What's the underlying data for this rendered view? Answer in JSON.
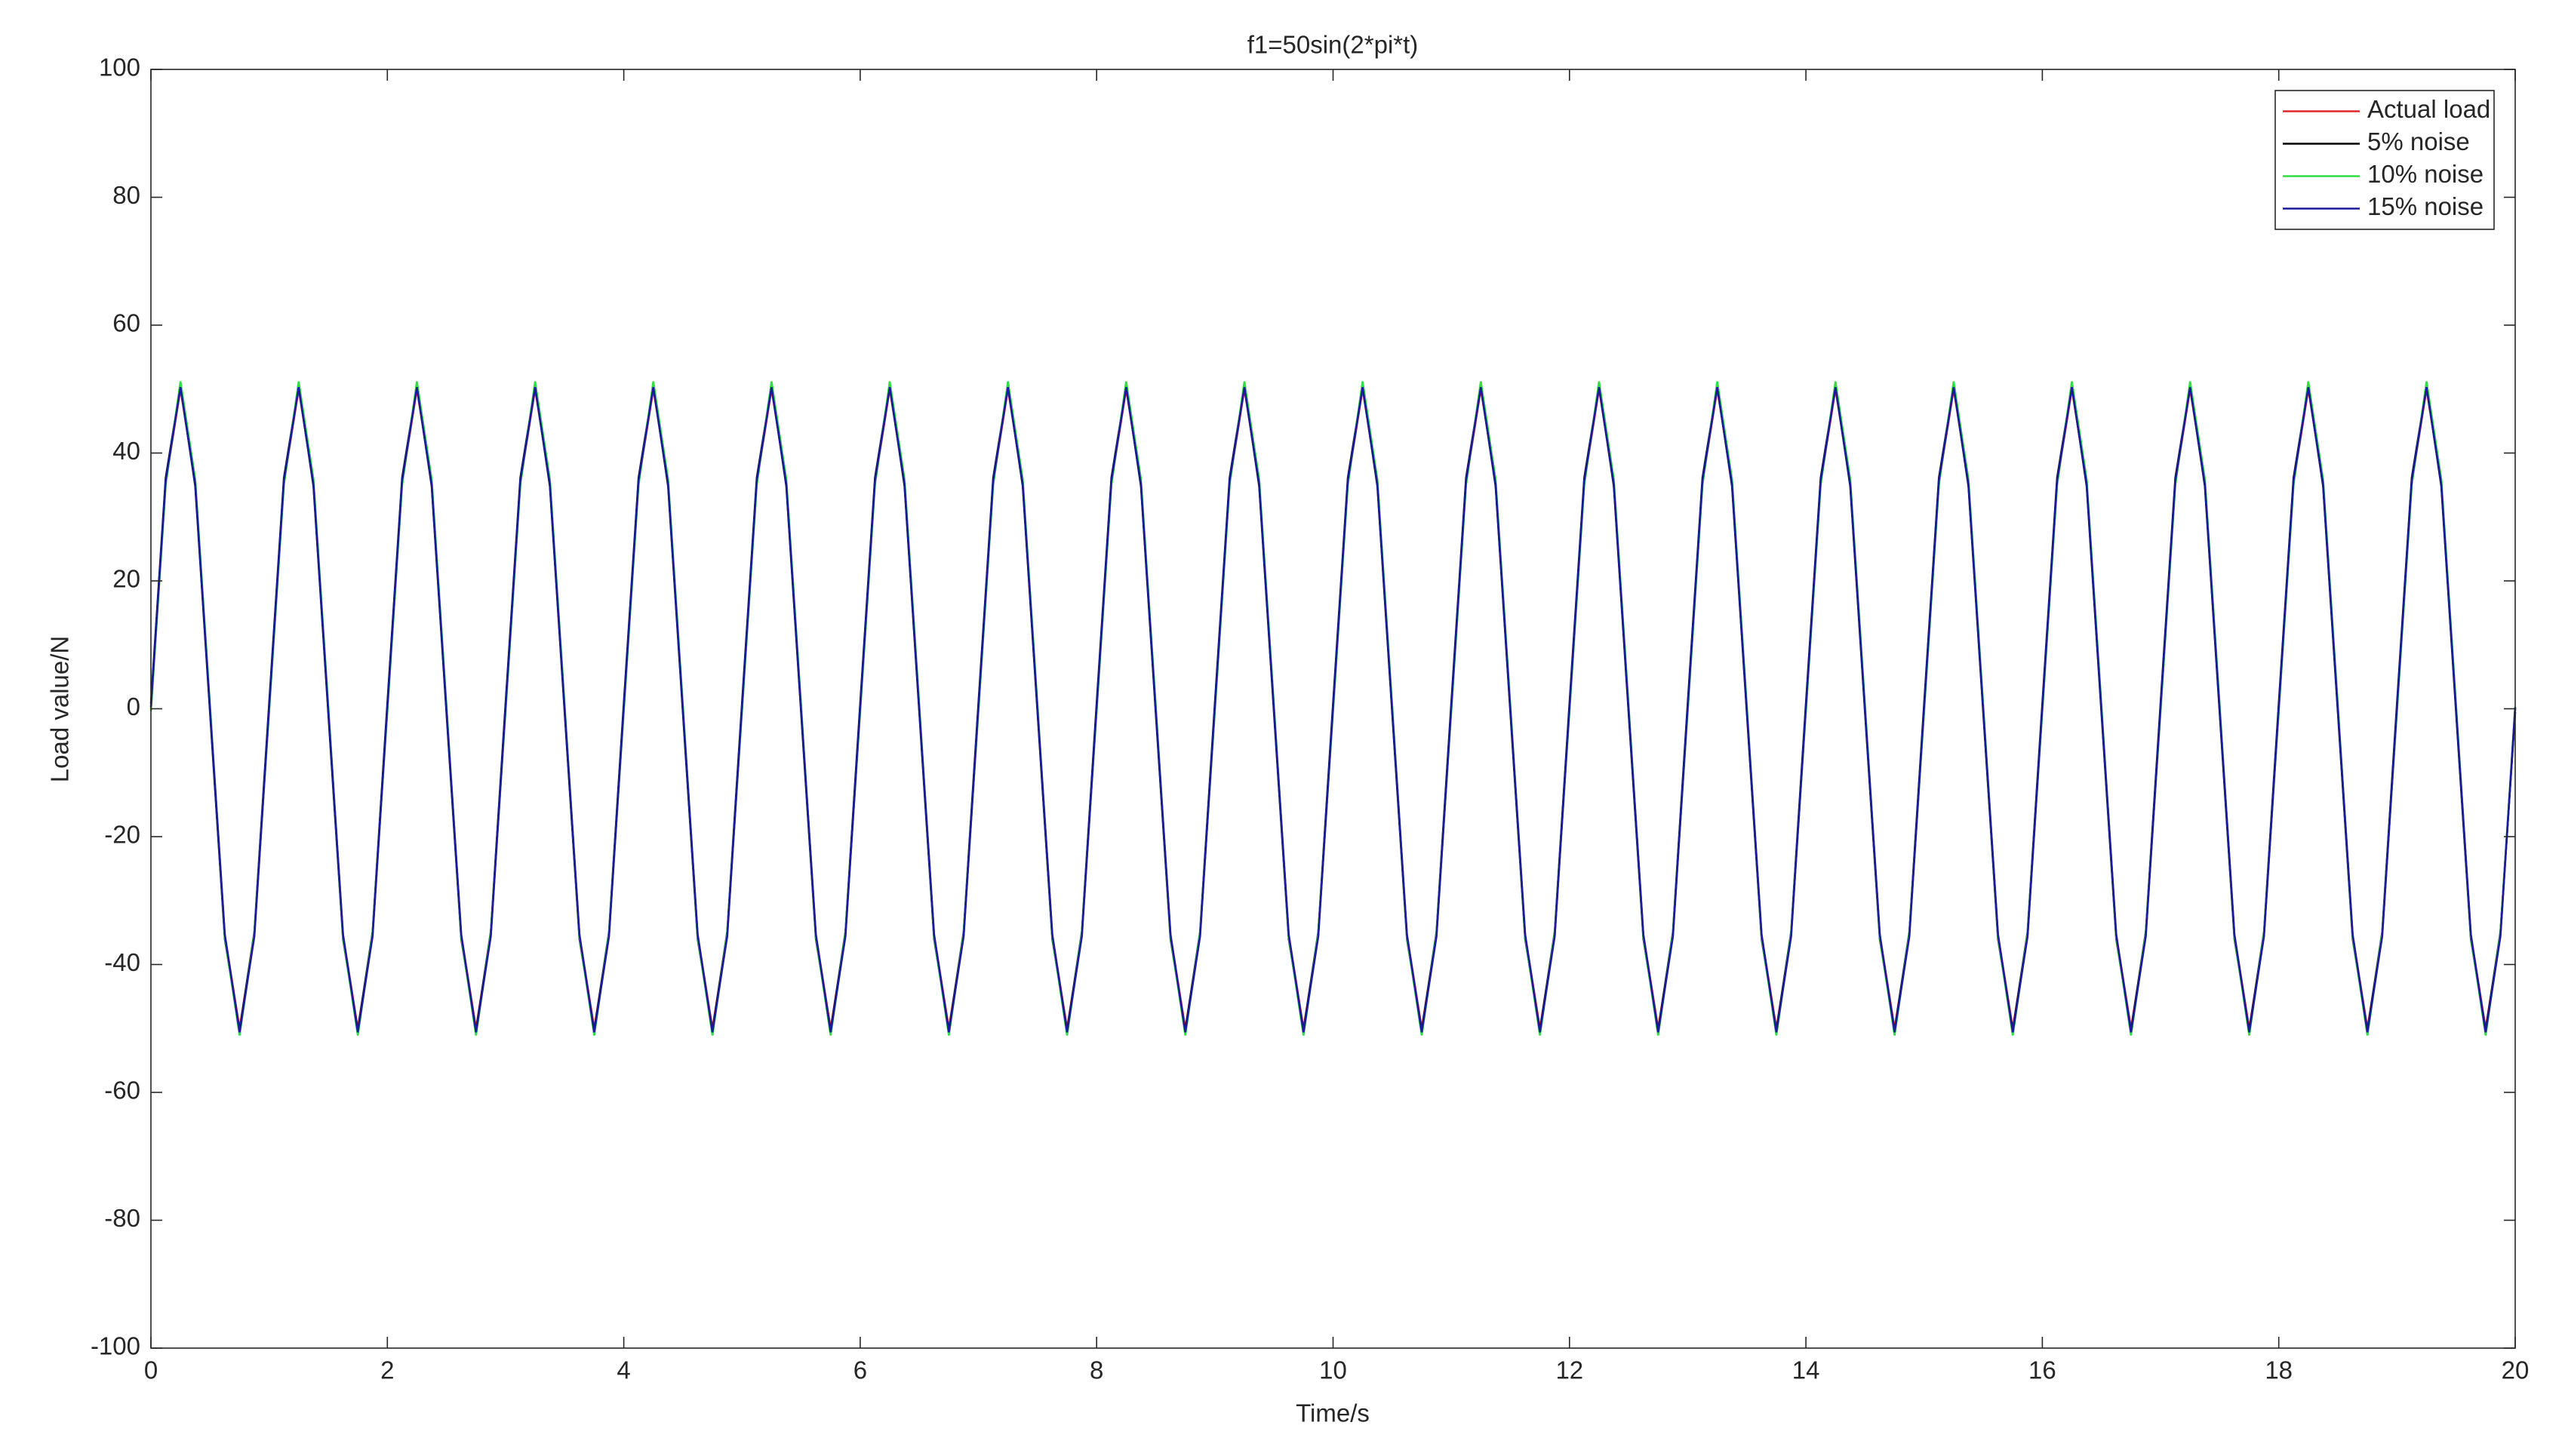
{
  "chart_data": {
    "type": "line",
    "title": "f1=50sin(2*pi*t)",
    "x_label": "Time/s",
    "y_label": "Load value/N",
    "x": [
      0,
      0.125,
      0.25,
      0.375,
      0.5,
      0.625,
      0.75,
      0.875,
      1,
      1.125,
      1.25,
      1.375,
      1.5,
      1.625,
      1.75,
      1.875,
      2,
      2.125,
      2.25,
      2.375,
      2.5,
      2.625,
      2.75,
      2.875,
      3,
      3.125,
      3.25,
      3.375,
      3.5,
      3.625,
      3.75,
      3.875,
      4,
      4.125,
      4.25,
      4.375,
      4.5,
      4.625,
      4.75,
      4.875,
      5,
      5.125,
      5.25,
      5.375,
      5.5,
      5.625,
      5.75,
      5.875,
      6,
      6.125,
      6.25,
      6.375,
      6.5,
      6.625,
      6.75,
      6.875,
      7,
      7.125,
      7.25,
      7.375,
      7.5,
      7.625,
      7.75,
      7.875,
      8,
      8.125,
      8.25,
      8.375,
      8.5,
      8.625,
      8.75,
      8.875,
      9,
      9.125,
      9.25,
      9.375,
      9.5,
      9.625,
      9.75,
      9.875,
      10,
      10.125,
      10.25,
      10.375,
      10.5,
      10.625,
      10.75,
      10.875,
      11,
      11.125,
      11.25,
      11.375,
      11.5,
      11.625,
      11.75,
      11.875,
      12,
      12.125,
      12.25,
      12.375,
      12.5,
      12.625,
      12.75,
      12.875,
      13,
      13.125,
      13.25,
      13.375,
      13.5,
      13.625,
      13.75,
      13.875,
      14,
      14.125,
      14.25,
      14.375,
      14.5,
      14.625,
      14.75,
      14.875,
      15,
      15.125,
      15.25,
      15.375,
      15.5,
      15.625,
      15.75,
      15.875,
      16,
      16.125,
      16.25,
      16.375,
      16.5,
      16.625,
      16.75,
      16.875,
      17,
      17.125,
      17.25,
      17.375,
      17.5,
      17.625,
      17.75,
      17.875,
      18,
      18.125,
      18.25,
      18.375,
      18.5,
      18.625,
      18.75,
      18.875,
      19,
      19.125,
      19.25,
      19.375,
      19.5,
      19.625,
      19.75,
      19.875,
      20
    ],
    "series": [
      {
        "name": "Actual load",
        "color": "#e0262b",
        "values": [
          0,
          35.4,
          50,
          35.4,
          0,
          -35.4,
          -50,
          -35.4,
          0,
          35.4,
          50,
          35.4,
          0,
          -35.4,
          -50,
          -35.4,
          0,
          35.4,
          50,
          35.4,
          0,
          -35.4,
          -50,
          -35.4,
          0,
          35.4,
          50,
          35.4,
          0,
          -35.4,
          -50,
          -35.4,
          0,
          35.4,
          50,
          35.4,
          0,
          -35.4,
          -50,
          -35.4,
          0,
          35.4,
          50,
          35.4,
          0,
          -35.4,
          -50,
          -35.4,
          0,
          35.4,
          50,
          35.4,
          0,
          -35.4,
          -50,
          -35.4,
          0,
          35.4,
          50,
          35.4,
          0,
          -35.4,
          -50,
          -35.4,
          0,
          35.4,
          50,
          35.4,
          0,
          -35.4,
          -50,
          -35.4,
          0,
          35.4,
          50,
          35.4,
          0,
          -35.4,
          -50,
          -35.4,
          0,
          35.4,
          50,
          35.4,
          0,
          -35.4,
          -50,
          -35.4,
          0,
          35.4,
          50,
          35.4,
          0,
          -35.4,
          -50,
          -35.4,
          0,
          35.4,
          50,
          35.4,
          0,
          -35.4,
          -50,
          -35.4,
          0,
          35.4,
          50,
          35.4,
          0,
          -35.4,
          -50,
          -35.4,
          0,
          35.4,
          50,
          35.4,
          0,
          -35.4,
          -50,
          -35.4,
          0,
          35.4,
          50,
          35.4,
          0,
          -35.4,
          -50,
          -35.4,
          0,
          35.4,
          50,
          35.4,
          0,
          -35.4,
          -50,
          -35.4,
          0,
          35.4,
          50,
          35.4,
          0,
          -35.4,
          -50,
          -35.4,
          0,
          35.4,
          50,
          35.4,
          0,
          -35.4,
          -50,
          -35.4,
          0,
          35.4,
          50,
          35.4,
          0,
          -35.4,
          -50,
          -35.4,
          0
        ]
      },
      {
        "name": "5% noise",
        "color": "#000000",
        "values": [
          0.8,
          36.1,
          50.5,
          34.8,
          -0.6,
          -36,
          -50.4,
          -34.9,
          0.8,
          36.1,
          50.5,
          34.8,
          -0.6,
          -36,
          -50.4,
          -34.9,
          0.8,
          36.1,
          50.5,
          34.8,
          -0.6,
          -36,
          -50.4,
          -34.9,
          0.8,
          36.1,
          50.5,
          34.8,
          -0.6,
          -36,
          -50.4,
          -34.9,
          0.8,
          36.1,
          50.5,
          34.8,
          -0.6,
          -36,
          -50.4,
          -34.9,
          0.8,
          36.1,
          50.5,
          34.8,
          -0.6,
          -36,
          -50.4,
          -34.9,
          0.8,
          36.1,
          50.5,
          34.8,
          -0.6,
          -36,
          -50.4,
          -34.9,
          0.8,
          36.1,
          50.5,
          34.8,
          -0.6,
          -36,
          -50.4,
          -34.9,
          0.8,
          36.1,
          50.5,
          34.8,
          -0.6,
          -36,
          -50.4,
          -34.9,
          0.8,
          36.1,
          50.5,
          34.8,
          -0.6,
          -36,
          -50.4,
          -34.9,
          0.8,
          36.1,
          50.5,
          34.8,
          -0.6,
          -36,
          -50.4,
          -34.9,
          0.8,
          36.1,
          50.5,
          34.8,
          -0.6,
          -36,
          -50.4,
          -34.9,
          0.8,
          36.1,
          50.5,
          34.8,
          -0.6,
          -36,
          -50.4,
          -34.9,
          0.8,
          36.1,
          50.5,
          34.8,
          -0.6,
          -36,
          -50.4,
          -34.9,
          0.8,
          36.1,
          50.5,
          34.8,
          -0.6,
          -36,
          -50.4,
          -34.9,
          0.8,
          36.1,
          50.5,
          34.8,
          -0.6,
          -36,
          -50.4,
          -34.9,
          0.8,
          36.1,
          50.5,
          34.8,
          -0.6,
          -36,
          -50.4,
          -34.9,
          0.8,
          36.1,
          50.5,
          34.8,
          -0.6,
          -36,
          -50.4,
          -34.9,
          0.8,
          36.1,
          50.5,
          34.8,
          -0.6,
          -36,
          -50.4,
          -34.9,
          0.8,
          36.1,
          50.5,
          34.8,
          -0.6,
          -36,
          -50.4,
          -34.9,
          -0.5
        ]
      },
      {
        "name": "10% noise",
        "color": "#33dd44",
        "values": [
          -0.4,
          35,
          51.2,
          35.9,
          0.5,
          -35.7,
          -51.1,
          -35.1,
          -0.4,
          35,
          51.2,
          35.9,
          0.5,
          -35.7,
          -51.1,
          -35.1,
          -0.4,
          35,
          51.2,
          35.9,
          0.5,
          -35.7,
          -51.1,
          -35.1,
          -0.4,
          35,
          51.2,
          35.9,
          0.5,
          -35.7,
          -51.1,
          -35.1,
          -0.4,
          35,
          51.2,
          35.9,
          0.5,
          -35.7,
          -51.1,
          -35.1,
          -0.4,
          35,
          51.2,
          35.9,
          0.5,
          -35.7,
          -51.1,
          -35.1,
          -0.4,
          35,
          51.2,
          35.9,
          0.5,
          -35.7,
          -51.1,
          -35.1,
          -0.4,
          35,
          51.2,
          35.9,
          0.5,
          -35.7,
          -51.1,
          -35.1,
          -0.4,
          35,
          51.2,
          35.9,
          0.5,
          -35.7,
          -51.1,
          -35.1,
          -0.4,
          35,
          51.2,
          35.9,
          0.5,
          -35.7,
          -51.1,
          -35.1,
          -0.4,
          35,
          51.2,
          35.9,
          0.5,
          -35.7,
          -51.1,
          -35.1,
          -0.4,
          35,
          51.2,
          35.9,
          0.5,
          -35.7,
          -51.1,
          -35.1,
          -0.4,
          35,
          51.2,
          35.9,
          0.5,
          -35.7,
          -51.1,
          -35.1,
          -0.4,
          35,
          51.2,
          35.9,
          0.5,
          -35.7,
          -51.1,
          -35.1,
          -0.4,
          35,
          51.2,
          35.9,
          0.5,
          -35.7,
          -51.1,
          -35.1,
          -0.4,
          35,
          51.2,
          35.9,
          0.5,
          -35.7,
          -51.1,
          -35.1,
          -0.4,
          35,
          51.2,
          35.9,
          0.5,
          -35.7,
          -51.1,
          -35.1,
          -0.4,
          35,
          51.2,
          35.9,
          0.5,
          -35.7,
          -51.1,
          -35.1,
          -0.4,
          35,
          51.2,
          35.9,
          0.5,
          -35.7,
          -51.1,
          -35.1,
          -0.4,
          35,
          51.2,
          35.9,
          0.5,
          -35.7,
          -51.1,
          -35.1,
          0.3
        ]
      },
      {
        "name": "15% noise",
        "color": "#1a1a9a",
        "values": [
          0.3,
          35.7,
          50.3,
          35.1,
          -0.2,
          -35.3,
          -50.6,
          -35.6,
          0.3,
          35.7,
          50.3,
          35.1,
          -0.2,
          -35.3,
          -50.6,
          -35.6,
          0.3,
          35.7,
          50.3,
          35.1,
          -0.2,
          -35.3,
          -50.6,
          -35.6,
          0.3,
          35.7,
          50.3,
          35.1,
          -0.2,
          -35.3,
          -50.6,
          -35.6,
          0.3,
          35.7,
          50.3,
          35.1,
          -0.2,
          -35.3,
          -50.6,
          -35.6,
          0.3,
          35.7,
          50.3,
          35.1,
          -0.2,
          -35.3,
          -50.6,
          -35.6,
          0.3,
          35.7,
          50.3,
          35.1,
          -0.2,
          -35.3,
          -50.6,
          -35.6,
          0.3,
          35.7,
          50.3,
          35.1,
          -0.2,
          -35.3,
          -50.6,
          -35.6,
          0.3,
          35.7,
          50.3,
          35.1,
          -0.2,
          -35.3,
          -50.6,
          -35.6,
          0.3,
          35.7,
          50.3,
          35.1,
          -0.2,
          -35.3,
          -50.6,
          -35.6,
          0.3,
          35.7,
          50.3,
          35.1,
          -0.2,
          -35.3,
          -50.6,
          -35.6,
          0.3,
          35.7,
          50.3,
          35.1,
          -0.2,
          -35.3,
          -50.6,
          -35.6,
          0.3,
          35.7,
          50.3,
          35.1,
          -0.2,
          -35.3,
          -50.6,
          -35.6,
          0.3,
          35.7,
          50.3,
          35.1,
          -0.2,
          -35.3,
          -50.6,
          -35.6,
          0.3,
          35.7,
          50.3,
          35.1,
          -0.2,
          -35.3,
          -50.6,
          -35.6,
          0.3,
          35.7,
          50.3,
          35.1,
          -0.2,
          -35.3,
          -50.6,
          -35.6,
          0.3,
          35.7,
          50.3,
          35.1,
          -0.2,
          -35.3,
          -50.6,
          -35.6,
          0.3,
          35.7,
          50.3,
          35.1,
          -0.2,
          -35.3,
          -50.6,
          -35.6,
          0.3,
          35.7,
          50.3,
          35.1,
          -0.2,
          -35.3,
          -50.6,
          -35.6,
          0.3,
          35.7,
          50.3,
          35.1,
          -0.2,
          -35.3,
          -50.6,
          -35.6,
          0.2
        ]
      }
    ],
    "xlim": [
      0,
      20
    ],
    "xticks": [
      0,
      2,
      4,
      6,
      8,
      10,
      12,
      14,
      16,
      18,
      20
    ],
    "ylim": [
      -100,
      100
    ],
    "yticks": [
      -100,
      -80,
      -60,
      -40,
      -20,
      0,
      20,
      40,
      60,
      80,
      100
    ],
    "grid": false,
    "legend": "upper right"
  }
}
